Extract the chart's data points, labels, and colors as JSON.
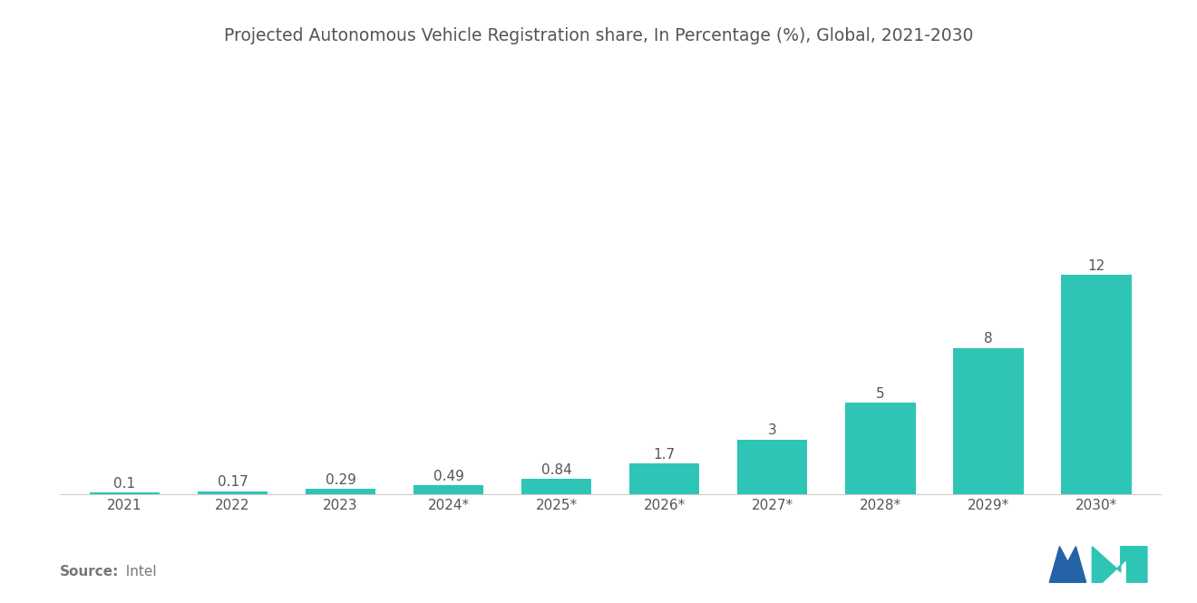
{
  "title": "Projected Autonomous Vehicle Registration share, In Percentage (%), Global, 2021-2030",
  "categories": [
    "2021",
    "2022",
    "2023",
    "2024*",
    "2025*",
    "2026*",
    "2027*",
    "2028*",
    "2029*",
    "2030*"
  ],
  "values": [
    0.1,
    0.17,
    0.29,
    0.49,
    0.84,
    1.7,
    3,
    5,
    8,
    12
  ],
  "labels": [
    "0.1",
    "0.17",
    "0.29",
    "0.49",
    "0.84",
    "1.7",
    "3",
    "5",
    "8",
    "12"
  ],
  "bar_color": "#2EC4B6",
  "background_color": "#ffffff",
  "title_color": "#555555",
  "label_color": "#555555",
  "tick_color": "#555555",
  "source_bold": "Source:",
  "source_regular": "  Intel",
  "source_color": "#777777",
  "title_fontsize": 13.5,
  "label_fontsize": 11,
  "tick_fontsize": 11,
  "source_fontsize": 11,
  "ylim": [
    0,
    14.5
  ],
  "logo_left_color": "#2563a8",
  "logo_right_color": "#2EC4B6"
}
